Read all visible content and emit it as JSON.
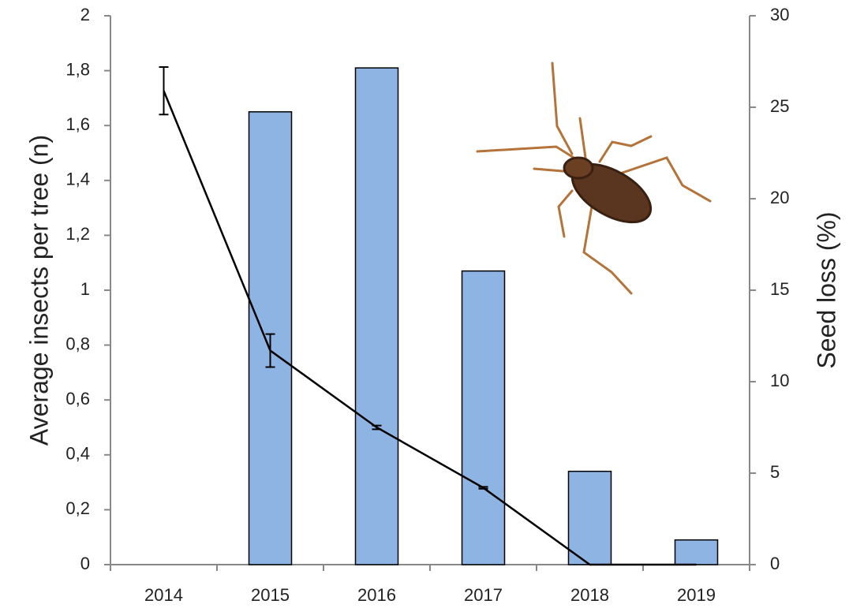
{
  "chart_data": {
    "type": "bar",
    "categories": [
      "2014",
      "2015",
      "2016",
      "2017",
      "2018",
      "2019"
    ],
    "series": [
      {
        "type": "bar",
        "color": "#8eb4e3",
        "values": [
          null,
          1.65,
          1.81,
          1.07,
          0.34,
          0.09
        ]
      },
      {
        "type": "line",
        "axis": "y2",
        "color": "#000000",
        "values": [
          25.9,
          11.7,
          7.5,
          4.2,
          0,
          0
        ],
        "errors": [
          1.3,
          0.9,
          0.1,
          0.05,
          null,
          null
        ]
      }
    ],
    "ylabel": "Average insects per tree (n)",
    "y2label": "Seed loss (%)",
    "ylim": [
      0,
      2
    ],
    "yticks": [
      0,
      {
        "value": 0.2,
        "label": "0,2"
      },
      {
        "value": 0.4,
        "label": "0,4"
      },
      {
        "value": 0.6,
        "label": "0,6"
      },
      {
        "value": 0.8,
        "label": "0,8"
      },
      1,
      {
        "value": 1.2,
        "label": "1,2"
      },
      {
        "value": 1.4,
        "label": "1,4"
      },
      {
        "value": 1.6,
        "label": "1,6"
      },
      {
        "value": 1.8,
        "label": "1,8"
      },
      2
    ],
    "y2lim": [
      0,
      30
    ],
    "y2ticks": [
      0,
      5,
      10,
      15,
      20,
      25,
      30
    ]
  }
}
